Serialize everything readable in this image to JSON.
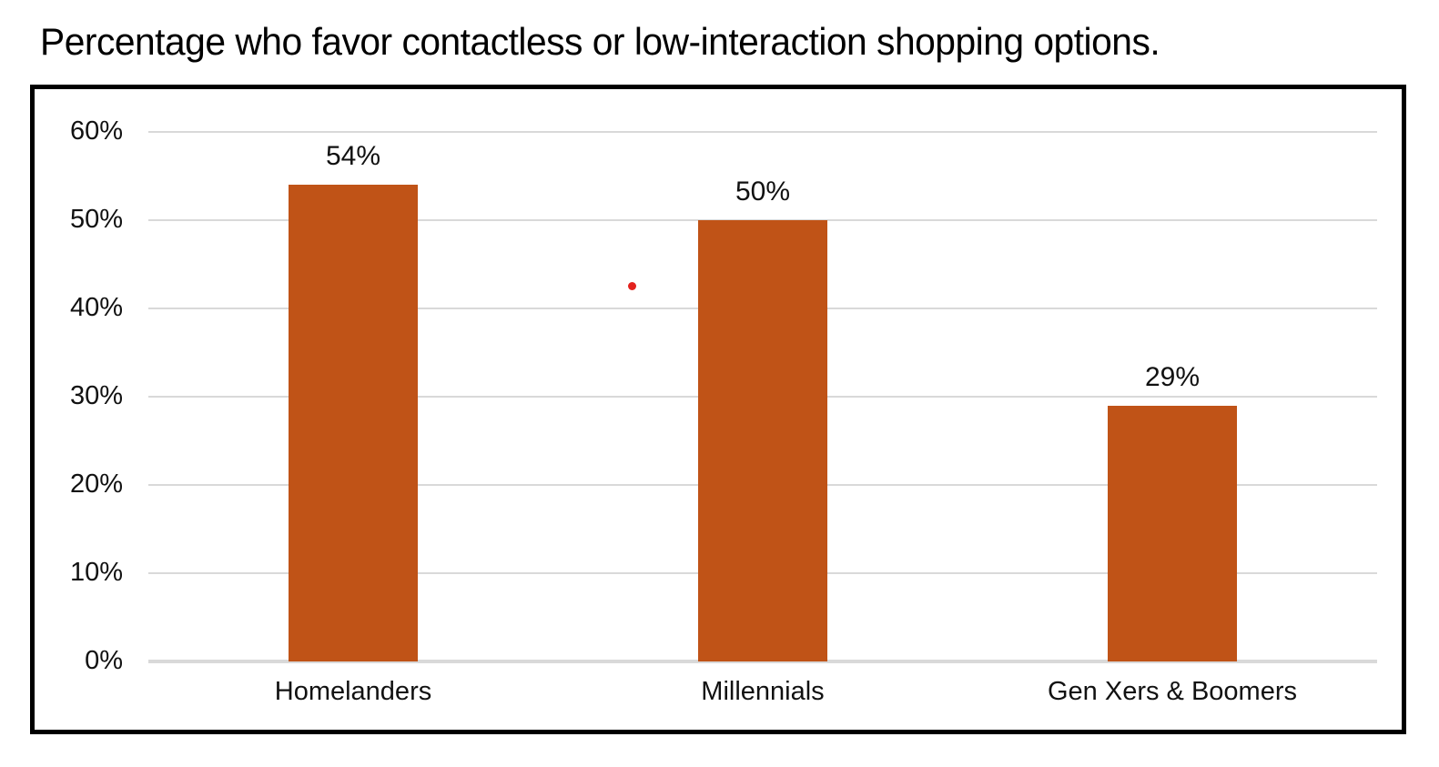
{
  "title": "Percentage who favor contactless or low-interaction shopping options.",
  "chart_data": {
    "type": "bar",
    "title": "Percentage who favor contactless or low-interaction shopping options.",
    "categories": [
      "Homelanders",
      "Millennials",
      "Gen Xers & Boomers"
    ],
    "values": [
      54,
      50,
      29
    ],
    "value_labels": [
      "54%",
      "50%",
      "29%"
    ],
    "xlabel": "",
    "ylabel": "",
    "ylim": [
      0,
      60
    ],
    "yticks": [
      0,
      10,
      20,
      30,
      40,
      50,
      60
    ],
    "ytick_labels": [
      "0%",
      "10%",
      "20%",
      "30%",
      "40%",
      "50%",
      "60%"
    ],
    "grid": "horizontal gridlines on",
    "legend": "none",
    "colors": {
      "bar": "#c05317",
      "gridline": "#d9d9d9",
      "baseline": "#d9d9d9",
      "text": "#111111",
      "border": "#000000",
      "annotation_dot": "#e3221e"
    },
    "annotation_dot": {
      "description": "small red dot floating between Homelanders and Millennials bars",
      "approx_value": 42.5,
      "x_fraction_of_plot": 0.394
    }
  }
}
